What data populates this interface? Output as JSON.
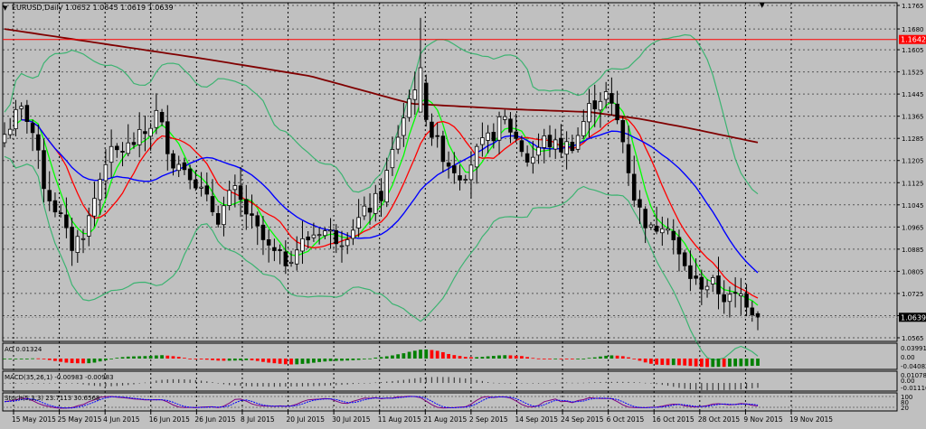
{
  "window": {
    "symbol_label": "EURUSD,Daily",
    "ohlc_text": "1.0652 1.0645 1.0619 1.0639"
  },
  "colors": {
    "background": "#c0c0c0",
    "grid": "#000000",
    "candle_bull": "#ffffff",
    "candle_bear": "#000000",
    "ma_slow": "#800000",
    "ma_blue": "#0000ff",
    "ma_red": "#ff0000",
    "ma_green": "#00ff00",
    "bands": "#3cb371",
    "resistance": "#ff0000",
    "ao_up": "#008000",
    "ao_down": "#ff0000",
    "stoch_main": "#800080",
    "stoch_signal": "#0000ff"
  },
  "main_axis": {
    "ticks": [
      "1.1765",
      "1.1680",
      "1.1605",
      "1.1525",
      "1.1445",
      "1.1365",
      "1.1285",
      "1.1205",
      "1.1125",
      "1.1045",
      "1.0965",
      "1.0885",
      "1.0805",
      "1.0725",
      "1.0645",
      "1.0565"
    ],
    "resistance_label": "1.1642",
    "current_price_label": "1.0639"
  },
  "ao_panel": {
    "label": "AO 0.01324",
    "ticks": [
      "0.03991",
      "0.00",
      "-0.04082"
    ]
  },
  "macd_panel": {
    "label": "MACD(35,26,1) -0.00983 -0.00983",
    "ticks": [
      "0.01078",
      "0.00",
      "-0.01116"
    ]
  },
  "stoch_panel": {
    "label": "Stoch(5,3,3) 23.7113 30.6568",
    "ticks": [
      "100",
      "80",
      "20"
    ]
  },
  "time_axis": {
    "labels": [
      "15 May 2015",
      "25 May 2015",
      "4 Jun 2015",
      "16 Jun 2015",
      "26 Jun 2015",
      "8 Jul 2015",
      "20 Jul 2015",
      "30 Jul 2015",
      "11 Aug 2015",
      "21 Aug 2015",
      "2 Sep 2015",
      "14 Sep 2015",
      "24 Sep 2015",
      "6 Oct 2015",
      "16 Oct 2015",
      "28 Oct 2015",
      "9 Nov 2015",
      "19 Nov 2015"
    ]
  },
  "chart_data": {
    "type": "candlestick",
    "ylim": [
      1.0565,
      1.1765
    ],
    "resistance_level": 1.1642,
    "current_price": 1.0639,
    "candle_count": 135,
    "anchors": [
      [
        0,
        1.13
      ],
      [
        3,
        1.139
      ],
      [
        5,
        1.135
      ],
      [
        8,
        1.11
      ],
      [
        11,
        1.1
      ],
      [
        13,
        1.089
      ],
      [
        16,
        1.096
      ],
      [
        20,
        1.122
      ],
      [
        24,
        1.125
      ],
      [
        28,
        1.131
      ],
      [
        30,
        1.138
      ],
      [
        33,
        1.12
      ],
      [
        36,
        1.118
      ],
      [
        40,
        1.105
      ],
      [
        42,
        1.1
      ],
      [
        45,
        1.11
      ],
      [
        48,
        1.1
      ],
      [
        52,
        1.088
      ],
      [
        55,
        1.084
      ],
      [
        58,
        1.09
      ],
      [
        62,
        1.096
      ],
      [
        66,
        1.092
      ],
      [
        70,
        1.1
      ],
      [
        74,
        1.108
      ],
      [
        76,
        1.122
      ],
      [
        79,
        1.14
      ],
      [
        81,
        1.15
      ],
      [
        84,
        1.13
      ],
      [
        87,
        1.12
      ],
      [
        90,
        1.115
      ],
      [
        93,
        1.124
      ],
      [
        96,
        1.13
      ],
      [
        98,
        1.136
      ],
      [
        100,
        1.13
      ],
      [
        103,
        1.12
      ],
      [
        106,
        1.128
      ],
      [
        109,
        1.125
      ],
      [
        112,
        1.127
      ],
      [
        115,
        1.14
      ],
      [
        118,
        1.145
      ],
      [
        121,
        1.132
      ],
      [
        124,
        1.105
      ],
      [
        127,
        1.095
      ],
      [
        130,
        1.1
      ],
      [
        133,
        1.083
      ],
      [
        136,
        1.076
      ],
      [
        139,
        1.076
      ],
      [
        142,
        1.07
      ],
      [
        145,
        1.072
      ],
      [
        148,
        1.0639
      ]
    ],
    "ma_slow": [
      [
        0,
        1.168
      ],
      [
        40,
        1.157
      ],
      [
        60,
        1.151
      ],
      [
        80,
        1.141
      ],
      [
        100,
        1.139
      ],
      [
        115,
        1.138
      ],
      [
        125,
        1.1355
      ],
      [
        135,
        1.132
      ],
      [
        148,
        1.127
      ]
    ]
  }
}
